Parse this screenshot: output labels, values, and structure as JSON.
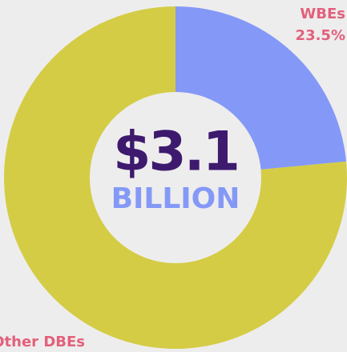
{
  "chart_data": {
    "type": "donut",
    "center_text": [
      "$3.1",
      "BILLION"
    ],
    "categories": [
      "WBEs",
      "Other DBEs"
    ],
    "values": [
      23.5,
      76.5
    ],
    "value_labels": [
      "23.5%",
      null
    ],
    "colors": [
      "#8499f7",
      "#d4cc45"
    ]
  }
}
